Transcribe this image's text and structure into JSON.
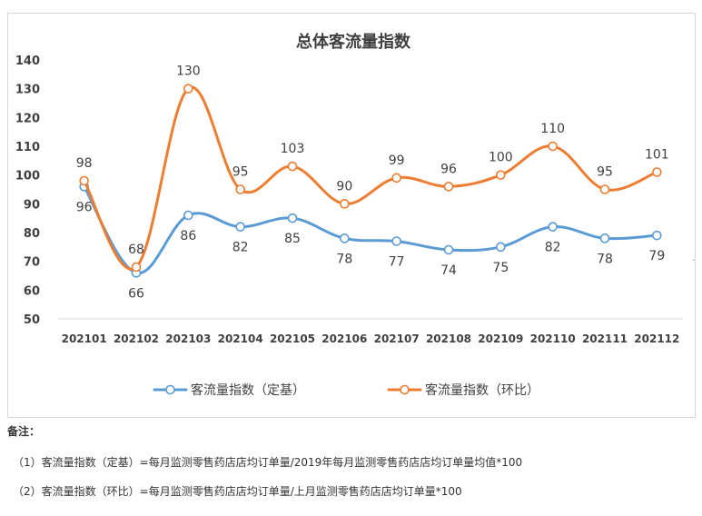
{
  "chart_data": {
    "type": "line",
    "title": "总体客流量指数",
    "categories": [
      "202101",
      "202102",
      "202103",
      "202104",
      "202105",
      "202106",
      "202107",
      "202108",
      "202109",
      "202110",
      "202111",
      "202112"
    ],
    "series": [
      {
        "name": "客流量指数（定基）",
        "color": "#5b9bd5",
        "values": [
          96,
          66,
          86,
          82,
          85,
          78,
          77,
          74,
          75,
          82,
          78,
          79
        ],
        "label_position": "below"
      },
      {
        "name": "客流量指数（环比）",
        "color": "#ed7d31",
        "values": [
          98,
          68,
          130,
          95,
          103,
          90,
          99,
          96,
          100,
          110,
          95,
          101
        ],
        "label_position": "above"
      }
    ],
    "ylim": [
      50,
      140
    ],
    "yticks": [
      50,
      60,
      70,
      80,
      90,
      100,
      110,
      120,
      130,
      140
    ],
    "grid": false,
    "legend_position": "bottom",
    "xlabel": "",
    "ylabel": ""
  },
  "notes": {
    "title": "备注：",
    "lines": [
      "（1）客流量指数（定基）=每月监测零售药店店均订单量/2019年每月监测零售药店店均订单量均值*100",
      "（2）客流量指数（环比）=每月监测零售药店店均订单量/上月监测零售药店店均订单量*100"
    ]
  },
  "side_mark": "·"
}
